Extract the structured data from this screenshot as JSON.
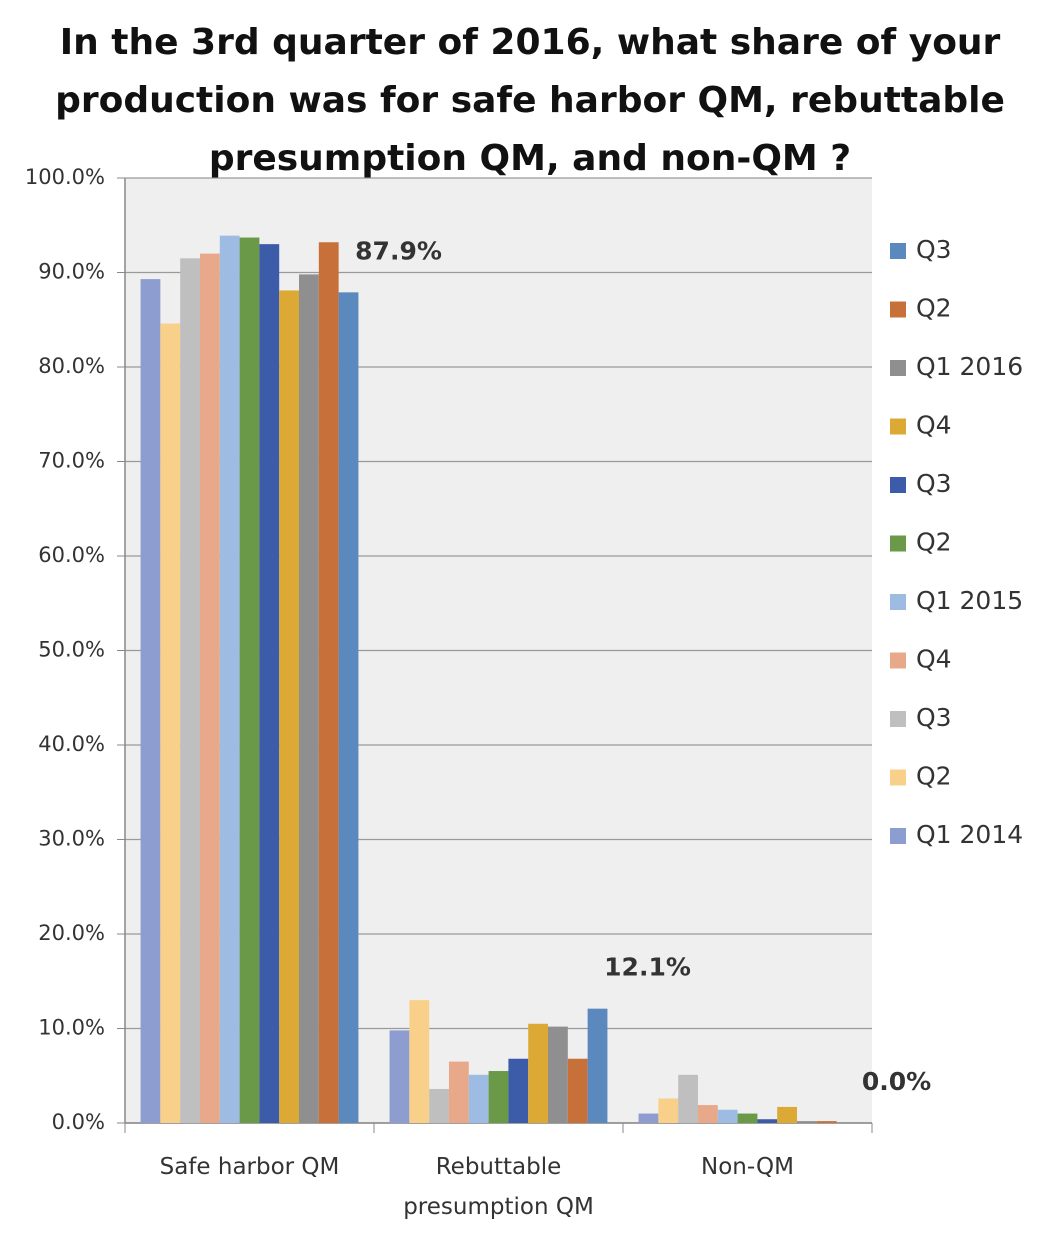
{
  "chart_data": {
    "type": "bar",
    "title": "In the 3rd quarter of 2016, what share of your production was for safe harbor QM, rebuttable presumption QM, and non-QM ?",
    "categories": [
      "Safe harbor QM",
      "Rebuttable presumption QM",
      "Non-QM"
    ],
    "series": [
      {
        "name": "Q1 2014",
        "color": "#8e9dcf",
        "values": [
          89.3,
          9.8,
          1.0
        ]
      },
      {
        "name": "Q2",
        "color": "#f9d08a",
        "values": [
          84.6,
          13.0,
          2.6
        ]
      },
      {
        "name": "Q3",
        "color": "#bfbfbf",
        "values": [
          91.5,
          3.6,
          5.1
        ]
      },
      {
        "name": "Q4",
        "color": "#e8a98a",
        "values": [
          92.0,
          6.5,
          1.9
        ]
      },
      {
        "name": "Q1 2015",
        "color": "#9dbbe3",
        "values": [
          93.9,
          5.1,
          1.4
        ]
      },
      {
        "name": "Q2",
        "color": "#6a9a48",
        "values": [
          93.7,
          5.5,
          1.0
        ]
      },
      {
        "name": "Q3",
        "color": "#3c5ba8",
        "values": [
          93.0,
          6.8,
          0.4
        ]
      },
      {
        "name": "Q4",
        "color": "#dba934",
        "values": [
          88.1,
          10.5,
          1.7
        ]
      },
      {
        "name": "Q1 2016",
        "color": "#8f8f8f",
        "values": [
          89.8,
          10.2,
          0.2
        ]
      },
      {
        "name": "Q2",
        "color": "#c8703a",
        "values": [
          93.2,
          6.8,
          0.2
        ]
      },
      {
        "name": "Q3",
        "color": "#5b88bd",
        "values": [
          87.9,
          12.1,
          0.0
        ],
        "value_labels": [
          "87.9%",
          "12.1%",
          "0.0%"
        ]
      }
    ],
    "ylim": [
      0,
      100
    ],
    "yticks": [
      {
        "value": 0,
        "label": "0.0%"
      },
      {
        "value": 10,
        "label": "10.0%"
      },
      {
        "value": 20,
        "label": "20.0%"
      },
      {
        "value": 30,
        "label": "30.0%"
      },
      {
        "value": 40,
        "label": "40.0%"
      },
      {
        "value": 50,
        "label": "50.0%"
      },
      {
        "value": 60,
        "label": "60.0%"
      },
      {
        "value": 70,
        "label": "70.0%"
      },
      {
        "value": 80,
        "label": "80.0%"
      },
      {
        "value": 90,
        "label": "90.0%"
      },
      {
        "value": 100,
        "label": "100.0%"
      }
    ],
    "grid": true,
    "legend": "right",
    "legend_reversed": true
  }
}
